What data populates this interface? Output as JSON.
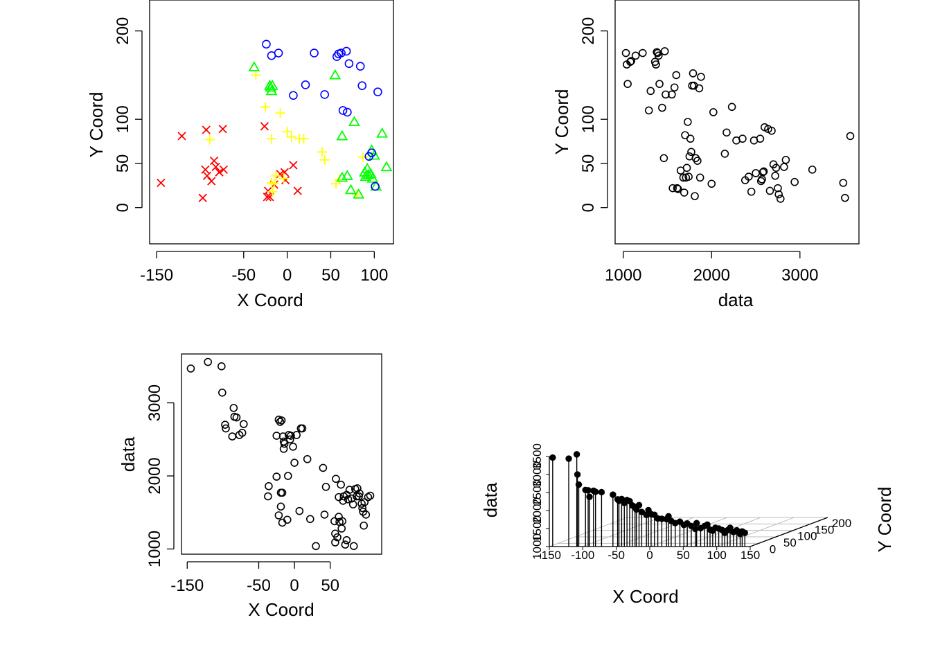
{
  "chart_data": [
    {
      "type": "scatter",
      "xlabel": "X Coord",
      "ylabel": "Y Coord",
      "xlim": [
        -158,
        122
      ],
      "ylim": [
        -41,
        235
      ],
      "xticks": [
        -150,
        -50,
        0,
        50,
        100
      ],
      "yticks": [
        0,
        50,
        100,
        200
      ],
      "series": [
        {
          "symbol": "x",
          "color": "#ff0000",
          "points": [
            [
              -145,
              28
            ],
            [
              -121,
              81
            ],
            [
              -97,
              11
            ],
            [
              -94,
              43
            ],
            [
              -93,
              88
            ],
            [
              -92,
              36
            ],
            [
              -87,
              30
            ],
            [
              -84,
              53
            ],
            [
              -82,
              46
            ],
            [
              -78,
              40
            ],
            [
              -74,
              89
            ],
            [
              -73,
              43
            ],
            [
              -26,
              92
            ],
            [
              -23,
              12
            ],
            [
              -22,
              19
            ],
            [
              -20,
              12
            ],
            [
              -15,
              26
            ],
            [
              -8,
              38
            ],
            [
              -3,
              40
            ],
            [
              -2,
              31
            ],
            [
              7,
              48
            ],
            [
              12,
              19
            ]
          ]
        },
        {
          "symbol": "plus",
          "color": "#ffff00",
          "points": [
            [
              -89,
              77
            ],
            [
              -36,
              150
            ],
            [
              -25,
              114
            ],
            [
              -18,
              78
            ],
            [
              -18,
              28
            ],
            [
              -17,
              18
            ],
            [
              -15,
              27
            ],
            [
              -13,
              36
            ],
            [
              -8,
              107
            ],
            [
              -4,
              33
            ],
            [
              0,
              86
            ],
            [
              5,
              80
            ],
            [
              14,
              78
            ],
            [
              19,
              78
            ],
            [
              40,
              63
            ],
            [
              43,
              54
            ],
            [
              56,
              27
            ],
            [
              60,
              32
            ],
            [
              87,
              57
            ],
            [
              80,
              15
            ]
          ]
        },
        {
          "symbol": "triangle",
          "color": "#00ff00",
          "points": [
            [
              -38,
              159
            ],
            [
              -20,
              138
            ],
            [
              -19,
              136
            ],
            [
              -18,
              132
            ],
            [
              -17,
              138
            ],
            [
              55,
              150
            ],
            [
              63,
              81
            ],
            [
              63,
              34
            ],
            [
              69,
              36
            ],
            [
              73,
              20
            ],
            [
              77,
              97
            ],
            [
              82,
              15
            ],
            [
              89,
              40
            ],
            [
              90,
              35
            ],
            [
              92,
              44
            ],
            [
              93,
              37
            ],
            [
              96,
              38
            ],
            [
              97,
              65
            ],
            [
              98,
              33
            ],
            [
              100,
              59
            ],
            [
              102,
              24
            ],
            [
              109,
              84
            ],
            [
              114,
              46
            ]
          ]
        },
        {
          "symbol": "circle",
          "color": "#0000ff",
          "points": [
            [
              -24,
              185
            ],
            [
              -18,
              172
            ],
            [
              -10,
              175
            ],
            [
              7,
              127
            ],
            [
              21,
              139
            ],
            [
              31,
              175
            ],
            [
              43,
              128
            ],
            [
              57,
              171
            ],
            [
              59,
              174
            ],
            [
              62,
              175
            ],
            [
              64,
              110
            ],
            [
              68,
              177
            ],
            [
              69,
              108
            ],
            [
              71,
              163
            ],
            [
              84,
              160
            ],
            [
              86,
              138
            ],
            [
              94,
              58
            ],
            [
              97,
              62
            ],
            [
              101,
              24
            ],
            [
              104,
              131
            ]
          ]
        }
      ]
    },
    {
      "type": "scatter",
      "xlabel": "data",
      "ylabel": "Y Coord",
      "xlim": [
        908,
        3668
      ],
      "ylim": [
        -41,
        235
      ],
      "xticks": [
        1000,
        2000,
        3000
      ],
      "yticks": [
        0,
        50,
        100,
        200
      ],
      "points": [
        [
          1030,
          175
        ],
        [
          1040,
          162
        ],
        [
          1050,
          140
        ],
        [
          1080,
          165
        ],
        [
          1090,
          166
        ],
        [
          1140,
          172
        ],
        [
          1220,
          175
        ],
        [
          1290,
          110
        ],
        [
          1310,
          132
        ],
        [
          1360,
          165
        ],
        [
          1370,
          162
        ],
        [
          1380,
          176
        ],
        [
          1390,
          175
        ],
        [
          1400,
          172
        ],
        [
          1410,
          140
        ],
        [
          1440,
          113
        ],
        [
          1460,
          56
        ],
        [
          1470,
          177
        ],
        [
          1480,
          128
        ],
        [
          1550,
          128
        ],
        [
          1560,
          22
        ],
        [
          1580,
          136
        ],
        [
          1600,
          150
        ],
        [
          1610,
          22
        ],
        [
          1620,
          21
        ],
        [
          1650,
          42
        ],
        [
          1680,
          34
        ],
        [
          1690,
          17
        ],
        [
          1700,
          82
        ],
        [
          1710,
          34
        ],
        [
          1720,
          45
        ],
        [
          1730,
          97
        ],
        [
          1740,
          35
        ],
        [
          1750,
          58
        ],
        [
          1760,
          78
        ],
        [
          1770,
          63
        ],
        [
          1780,
          138
        ],
        [
          1790,
          152
        ],
        [
          1800,
          138
        ],
        [
          1810,
          13
        ],
        [
          1820,
          56
        ],
        [
          1840,
          53
        ],
        [
          1860,
          135
        ],
        [
          1870,
          34
        ],
        [
          1880,
          148
        ],
        [
          2000,
          27
        ],
        [
          2020,
          108
        ],
        [
          2150,
          61
        ],
        [
          2170,
          85
        ],
        [
          2230,
          114
        ],
        [
          2280,
          76
        ],
        [
          2350,
          78
        ],
        [
          2380,
          31
        ],
        [
          2420,
          35
        ],
        [
          2450,
          18
        ],
        [
          2480,
          76
        ],
        [
          2500,
          39
        ],
        [
          2550,
          78
        ],
        [
          2560,
          30
        ],
        [
          2570,
          32
        ],
        [
          2580,
          40
        ],
        [
          2590,
          41
        ],
        [
          2600,
          91
        ],
        [
          2640,
          89
        ],
        [
          2660,
          19
        ],
        [
          2680,
          87
        ],
        [
          2700,
          49
        ],
        [
          2720,
          36
        ],
        [
          2730,
          45
        ],
        [
          2750,
          22
        ],
        [
          2760,
          15
        ],
        [
          2780,
          10
        ],
        [
          2820,
          46
        ],
        [
          2840,
          54
        ],
        [
          2940,
          29
        ],
        [
          3140,
          43
        ],
        [
          3490,
          28
        ],
        [
          3510,
          11
        ],
        [
          3570,
          81
        ]
      ]
    },
    {
      "type": "scatter",
      "xlabel": "X Coord",
      "ylabel": "data",
      "xlim": [
        -158,
        122
      ],
      "ylim": [
        929,
        3669
      ],
      "xticks": [
        -150,
        -50,
        0,
        50
      ],
      "yticks": [
        1000,
        2000,
        3000
      ],
      "points": [
        [
          -145,
          3470
        ],
        [
          -121,
          3560
        ],
        [
          -102,
          3500
        ],
        [
          -101,
          3140
        ],
        [
          -97,
          2700
        ],
        [
          -96,
          2650
        ],
        [
          -87,
          2540
        ],
        [
          -85,
          2930
        ],
        [
          -84,
          2810
        ],
        [
          -81,
          2800
        ],
        [
          -77,
          2560
        ],
        [
          -73,
          2590
        ],
        [
          -71,
          2710
        ],
        [
          -36,
          1860
        ],
        [
          -37,
          1720
        ],
        [
          -25,
          2550
        ],
        [
          -25,
          1990
        ],
        [
          -22,
          1460
        ],
        [
          -22,
          2770
        ],
        [
          -20,
          2740
        ],
        [
          -19,
          1770
        ],
        [
          -19,
          1580
        ],
        [
          -18,
          2760
        ],
        [
          -17,
          1770
        ],
        [
          -17,
          1360
        ],
        [
          -16,
          2540
        ],
        [
          -15,
          2470
        ],
        [
          -15,
          2370
        ],
        [
          -14,
          2440
        ],
        [
          -10,
          1400
        ],
        [
          -9,
          2000
        ],
        [
          -8,
          2560
        ],
        [
          -6,
          2500
        ],
        [
          -5,
          2550
        ],
        [
          -2,
          2400
        ],
        [
          0,
          2180
        ],
        [
          3,
          2560
        ],
        [
          7,
          1520
        ],
        [
          9,
          2650
        ],
        [
          11,
          2650
        ],
        [
          18,
          2230
        ],
        [
          22,
          1410
        ],
        [
          30,
          1040
        ],
        [
          40,
          2110
        ],
        [
          42,
          1470
        ],
        [
          44,
          1850
        ],
        [
          56,
          1380
        ],
        [
          57,
          1210
        ],
        [
          57,
          1090
        ],
        [
          58,
          1960
        ],
        [
          60,
          1160
        ],
        [
          62,
          1710
        ],
        [
          62,
          1440
        ],
        [
          63,
          1370
        ],
        [
          65,
          1880
        ],
        [
          66,
          1280
        ],
        [
          67,
          1380
        ],
        [
          68,
          1660
        ],
        [
          69,
          1720
        ],
        [
          71,
          1060
        ],
        [
          73,
          1740
        ],
        [
          73,
          1120
        ],
        [
          75,
          1680
        ],
        [
          77,
          1810
        ],
        [
          80,
          1690
        ],
        [
          82,
          1610
        ],
        [
          83,
          1040
        ],
        [
          85,
          1820
        ],
        [
          87,
          1720
        ],
        [
          88,
          1830
        ],
        [
          90,
          1720
        ],
        [
          91,
          1760
        ],
        [
          94,
          1620
        ],
        [
          95,
          1560
        ],
        [
          96,
          1510
        ],
        [
          97,
          1320
        ],
        [
          98,
          1640
        ],
        [
          100,
          1470
        ],
        [
          103,
          1710
        ],
        [
          106,
          1730
        ]
      ]
    },
    {
      "type": "scatter3d",
      "xlabel": "X Coord",
      "ylabel": "Y Coord",
      "zlabel": "data",
      "xticks": [
        -150,
        -100,
        -50,
        0,
        50,
        100,
        150
      ],
      "yticks": [
        0,
        50,
        100,
        150,
        200
      ],
      "zticks": [
        1000,
        1500,
        2000,
        2500,
        3000,
        3500
      ],
      "stems": [
        [
          -145,
          3470
        ],
        [
          -121,
          3440
        ],
        [
          -109,
          3560
        ],
        [
          -108,
          3000
        ],
        [
          -106,
          2720
        ],
        [
          -96,
          2570
        ],
        [
          -92,
          2560
        ],
        [
          -90,
          2380
        ],
        [
          -84,
          2550
        ],
        [
          -81,
          2520
        ],
        [
          -72,
          2510
        ],
        [
          -55,
          2440
        ],
        [
          -48,
          2310
        ],
        [
          -46,
          2270
        ],
        [
          -42,
          2320
        ],
        [
          -38,
          2210
        ],
        [
          -34,
          2290
        ],
        [
          -30,
          2260
        ],
        [
          -26,
          2140
        ],
        [
          -22,
          2100
        ],
        [
          -20,
          2030
        ],
        [
          -16,
          2150
        ],
        [
          -12,
          1960
        ],
        [
          -5,
          1880
        ],
        [
          -2,
          2010
        ],
        [
          2,
          1900
        ],
        [
          7,
          1880
        ],
        [
          12,
          1780
        ],
        [
          18,
          1770
        ],
        [
          25,
          1760
        ],
        [
          28,
          1840
        ],
        [
          32,
          1710
        ],
        [
          38,
          1650
        ],
        [
          45,
          1690
        ],
        [
          51,
          1600
        ],
        [
          56,
          1640
        ],
        [
          62,
          1570
        ],
        [
          68,
          1490
        ],
        [
          70,
          1650
        ],
        [
          76,
          1510
        ],
        [
          82,
          1570
        ],
        [
          86,
          1610
        ],
        [
          90,
          1470
        ],
        [
          94,
          1440
        ],
        [
          98,
          1520
        ],
        [
          103,
          1500
        ],
        [
          108,
          1460
        ],
        [
          112,
          1380
        ],
        [
          116,
          1450
        ],
        [
          120,
          1520
        ],
        [
          125,
          1400
        ],
        [
          130,
          1450
        ],
        [
          135,
          1350
        ],
        [
          138,
          1420
        ],
        [
          142,
          1380
        ]
      ]
    }
  ]
}
